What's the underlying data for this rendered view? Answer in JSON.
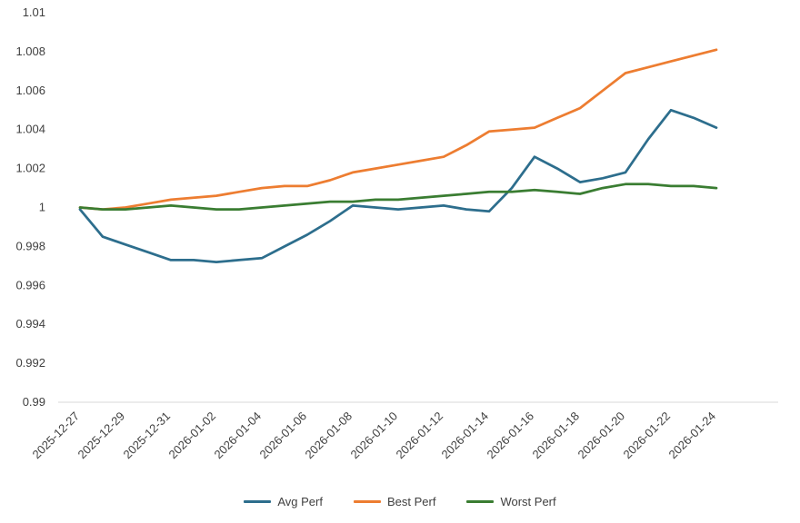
{
  "chart_data": {
    "type": "line",
    "title": "",
    "xlabel": "",
    "ylabel": "",
    "ylim": [
      0.99,
      1.01
    ],
    "grid": false,
    "legend_position": "bottom",
    "y_tick_values": [
      0.99,
      0.992,
      0.994,
      0.996,
      0.998,
      1,
      1.002,
      1.004,
      1.006,
      1.008,
      1.01
    ],
    "y_tick_labels": [
      "0.99",
      "0.992",
      "0.994",
      "0.996",
      "0.998",
      "1",
      "1.002",
      "1.004",
      "1.006",
      "1.008",
      "1.01"
    ],
    "x": [
      "2025-12-27",
      "2025-12-28",
      "2025-12-29",
      "2025-12-30",
      "2025-12-31",
      "2026-01-01",
      "2026-01-02",
      "2026-01-03",
      "2026-01-04",
      "2026-01-05",
      "2026-01-06",
      "2026-01-07",
      "2026-01-08",
      "2026-01-09",
      "2026-01-10",
      "2026-01-11",
      "2026-01-12",
      "2026-01-13",
      "2026-01-14",
      "2026-01-15",
      "2026-01-16",
      "2026-01-17",
      "2026-01-18",
      "2026-01-19",
      "2026-01-20",
      "2026-01-21",
      "2026-01-22",
      "2026-01-23",
      "2026-01-24"
    ],
    "x_tick_labels": [
      "2025-12-27",
      "2025-12-29",
      "2025-12-31",
      "2026-01-02",
      "2026-01-04",
      "2026-01-06",
      "2026-01-08",
      "2026-01-10",
      "2026-01-12",
      "2026-01-14",
      "2026-01-16",
      "2026-01-18",
      "2026-01-20",
      "2026-01-22",
      "2026-01-24"
    ],
    "x_tick_indices": [
      0,
      2,
      4,
      6,
      8,
      10,
      12,
      14,
      16,
      18,
      20,
      22,
      24,
      26,
      28
    ],
    "series": [
      {
        "name": "Avg Perf",
        "color": "#2d6e8d",
        "values": [
          0.9999,
          0.9985,
          0.9981,
          0.9977,
          0.9973,
          0.9973,
          0.9972,
          0.9973,
          0.9974,
          0.998,
          0.9986,
          0.9993,
          1.0001,
          1.0,
          0.9999,
          1.0,
          1.0001,
          0.9999,
          0.9998,
          1.001,
          1.0026,
          1.002,
          1.0013,
          1.0015,
          1.0018,
          1.0035,
          1.005,
          1.0046,
          1.0041
        ]
      },
      {
        "name": "Best Perf",
        "color": "#ed7d31",
        "values": [
          1.0,
          0.9999,
          1.0,
          1.0002,
          1.0004,
          1.0005,
          1.0006,
          1.0008,
          1.001,
          1.0011,
          1.0011,
          1.0014,
          1.0018,
          1.002,
          1.0022,
          1.0024,
          1.0026,
          1.0032,
          1.0039,
          1.004,
          1.0041,
          1.0046,
          1.0051,
          1.006,
          1.0069,
          1.0072,
          1.0075,
          1.0078,
          1.0081
        ]
      },
      {
        "name": "Worst Perf",
        "color": "#3a7d32",
        "values": [
          1.0,
          0.9999,
          0.9999,
          1.0,
          1.0001,
          1.0,
          0.9999,
          0.9999,
          1.0,
          1.0001,
          1.0002,
          1.0003,
          1.0003,
          1.0004,
          1.0004,
          1.0005,
          1.0006,
          1.0007,
          1.0008,
          1.0008,
          1.0009,
          1.0008,
          1.0007,
          1.001,
          1.0012,
          1.0012,
          1.0011,
          1.0011,
          1.001
        ]
      }
    ],
    "colors": {
      "axis_line": "#d9d9d9",
      "tick_text": "#404040",
      "background": "#ffffff"
    }
  }
}
